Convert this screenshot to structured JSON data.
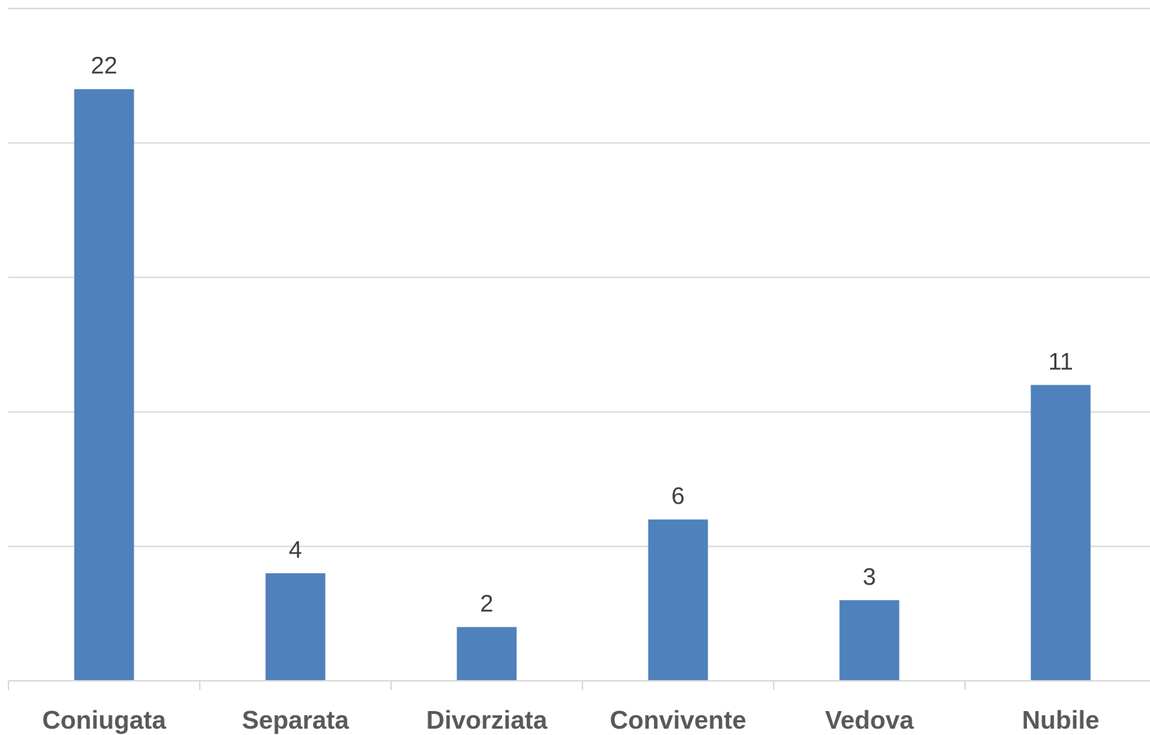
{
  "chart_data": {
    "type": "bar",
    "categories": [
      "Coniugata",
      "Separata",
      "Divorziata",
      "Convivente",
      "Vedova",
      "Nubile"
    ],
    "values": [
      22,
      4,
      2,
      6,
      3,
      11
    ],
    "ylim": [
      0,
      25
    ],
    "y_gridlines": [
      0,
      5,
      10,
      15,
      20,
      25
    ],
    "grid": true,
    "legend": "none",
    "colors": {
      "bar": "#4f81bd"
    }
  }
}
